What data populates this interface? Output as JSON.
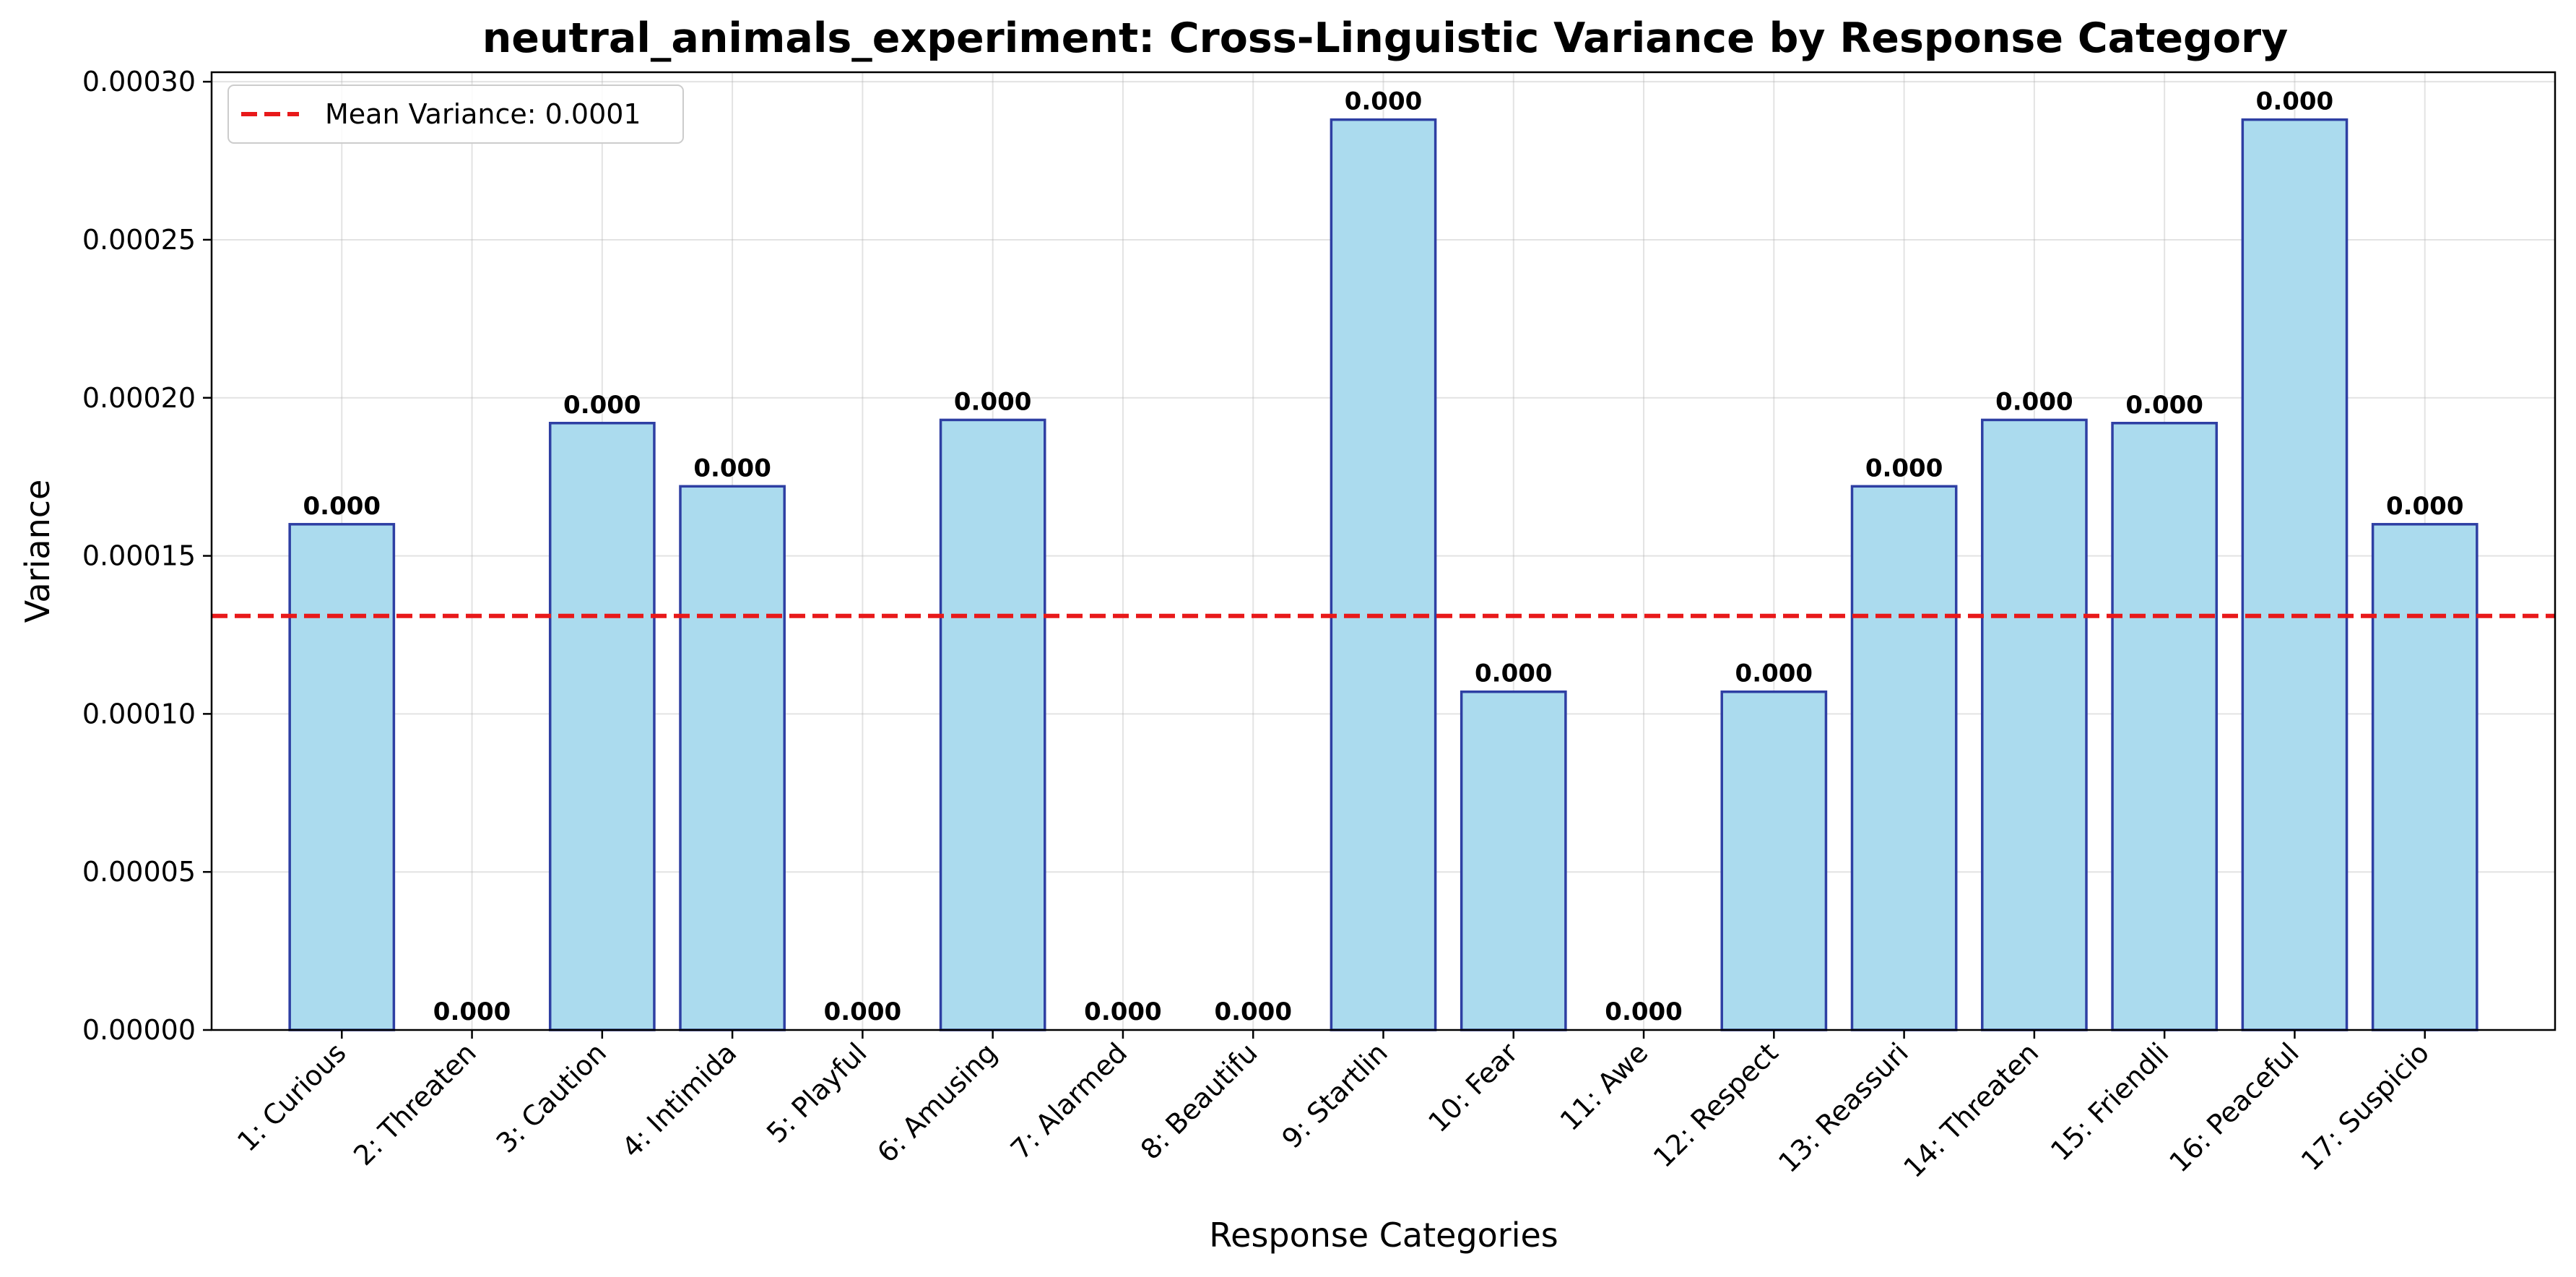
{
  "chart_data": {
    "type": "bar",
    "title": "neutral_animals_experiment: Cross-Linguistic Variance by Response Category",
    "xlabel": "Response Categories",
    "ylabel": "Variance",
    "categories": [
      "1: Curious",
      "2: Threaten",
      "3: Caution",
      "4: Intimida",
      "5: Playful",
      "6: Amusing",
      "7: Alarmed",
      "8: Beautifu",
      "9: Startlin",
      "10: Fear",
      "11: Awe",
      "12: Respect",
      "13: Reassuri",
      "14: Threaten",
      "15: Friendli",
      "16: Peaceful",
      "17: Suspicio"
    ],
    "values": [
      0.00016,
      0.0,
      0.000192,
      0.000172,
      0.0,
      0.000193,
      0.0,
      0.0,
      0.000288,
      0.000107,
      0.0,
      0.000107,
      0.000172,
      0.000193,
      0.000192,
      0.000288,
      0.00016
    ],
    "data_labels": [
      "0.000",
      "0.000",
      "0.000",
      "0.000",
      "0.000",
      "0.000",
      "0.000",
      "0.000",
      "0.000",
      "0.000",
      "0.000",
      "0.000",
      "0.000",
      "0.000",
      "0.000",
      "0.000",
      "0.000"
    ],
    "ylim": [
      0,
      0.000303
    ],
    "yticks": [
      0.0,
      5e-05,
      0.0001,
      0.00015,
      0.0002,
      0.00025,
      0.0003
    ],
    "ytick_labels": [
      "0.00000",
      "0.00005",
      "0.00010",
      "0.00015",
      "0.00020",
      "0.00025",
      "0.00030"
    ],
    "mean_line": {
      "value": 0.000131,
      "label": "Mean Variance: 0.0001",
      "color": "#e8191a"
    },
    "bar_color": "#abdbee",
    "bar_edge_color": "#2e3fa3",
    "grid": true,
    "legend_position": "top-left"
  }
}
